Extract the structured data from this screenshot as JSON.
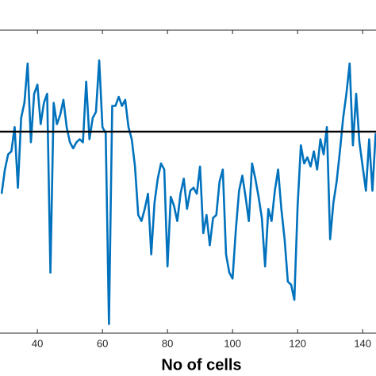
{
  "chart_data": {
    "type": "line",
    "xlabel": "No of cells",
    "x": [
      29,
      30,
      31,
      32,
      33,
      34,
      35,
      36,
      37,
      38,
      39,
      40,
      41,
      42,
      43,
      44,
      45,
      46,
      47,
      48,
      49,
      50,
      51,
      52,
      53,
      54,
      55,
      56,
      57,
      58,
      59,
      60,
      61,
      62,
      63,
      64,
      65,
      66,
      67,
      68,
      69,
      70,
      71,
      72,
      73,
      74,
      75,
      76,
      77,
      78,
      79,
      80,
      81,
      82,
      83,
      84,
      85,
      86,
      87,
      88,
      89,
      90,
      91,
      92,
      93,
      94,
      95,
      96,
      97,
      98,
      99,
      100,
      101,
      102,
      103,
      104,
      105,
      106,
      107,
      108,
      109,
      110,
      111,
      112,
      113,
      114,
      115,
      116,
      117,
      118,
      119,
      120,
      121,
      122,
      123,
      124,
      125,
      126,
      127,
      128,
      129,
      130,
      131,
      132,
      133,
      134,
      135,
      136,
      137,
      138,
      139,
      140,
      141,
      142,
      143,
      144
    ],
    "series": [
      {
        "color": "#0072bd",
        "values": [
          46,
          54,
          59,
          60,
          68,
          48,
          71,
          76,
          89,
          63,
          79,
          82,
          69,
          76,
          79,
          20,
          76,
          69,
          72,
          77,
          68,
          63,
          61,
          63,
          64,
          63,
          83,
          64,
          71,
          73,
          90,
          68,
          66,
          3,
          75,
          75,
          78,
          75,
          77,
          68,
          64,
          55,
          39,
          37,
          41,
          46,
          26,
          43,
          51,
          56,
          54,
          22,
          45,
          42,
          37,
          46,
          51,
          41,
          47,
          48,
          46,
          55,
          33,
          39,
          29,
          38,
          39,
          50,
          54,
          26,
          20,
          18,
          34,
          47,
          52,
          45,
          37,
          56,
          51,
          45,
          38,
          22,
          41,
          37,
          47,
          54,
          41,
          31,
          17,
          16,
          11,
          42,
          62,
          56,
          58,
          55,
          60,
          54,
          64,
          59,
          68,
          31,
          43,
          50,
          60,
          71,
          79,
          89,
          62,
          79,
          63,
          55,
          47,
          64,
          47,
          66
        ]
      }
    ],
    "hline": 66.5,
    "hline_color": "#000000",
    "xlim": [
      28.5,
      144.1
    ],
    "ylim": [
      0,
      100
    ],
    "xticks": [
      40,
      60,
      80,
      100,
      120,
      140
    ]
  }
}
